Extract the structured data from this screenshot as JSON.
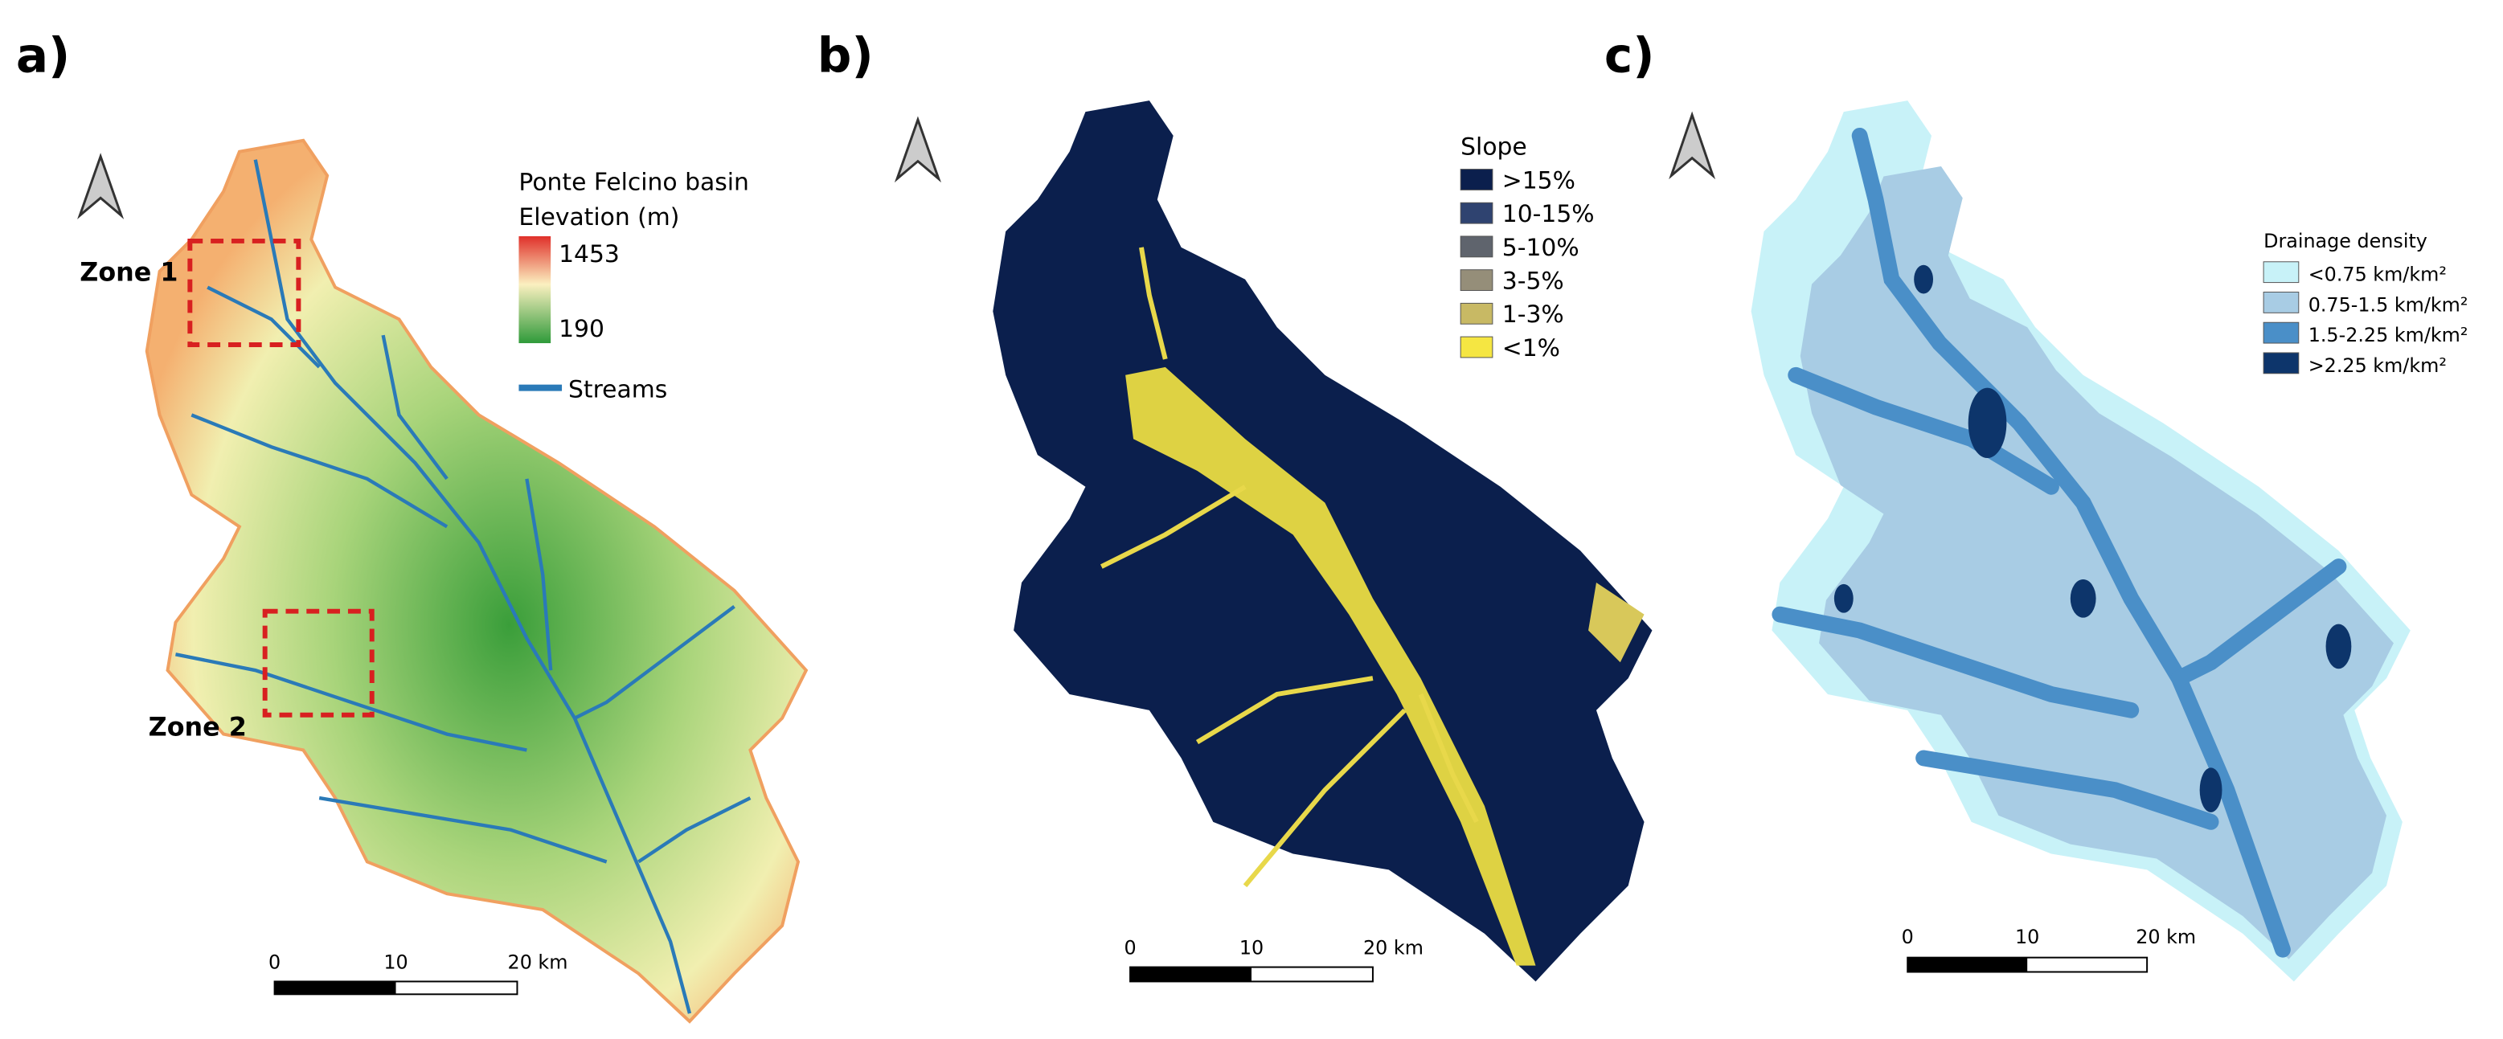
{
  "panels": [
    {
      "label": "a)",
      "legend": {
        "title": "Ponte Felcino basin",
        "subtitle": "Elevation (m)",
        "max": 1453,
        "min": 190,
        "streams": "Streams"
      },
      "zones": [
        "Zone 1",
        "Zone 2"
      ],
      "scale": [
        0,
        10,
        "20 km"
      ]
    },
    {
      "label": "b)",
      "legend": {
        "title": "Slope",
        "classes": [
          ">15%",
          "10-15%",
          "5-10%",
          "3-5%",
          "1-3%",
          "<1%"
        ],
        "colors": [
          "#0b1f4d",
          "#2f4370",
          "#5f646d",
          "#958e79",
          "#c8b964",
          "#f5e642"
        ]
      },
      "scale": [
        0,
        10,
        "20 km"
      ]
    },
    {
      "label": "c)",
      "legend": {
        "title": "Drainage density",
        "classes": [
          "<0.75 km/km²",
          "0.75-1.5 km/km²",
          "1.5-2.25 km/km²",
          ">2.25 km/km²"
        ],
        "colors": [
          "#c8f2f8",
          "#a8cce4",
          "#4a8fc8",
          "#0d356b"
        ]
      },
      "scale": [
        0,
        10,
        "20 km"
      ]
    }
  ]
}
